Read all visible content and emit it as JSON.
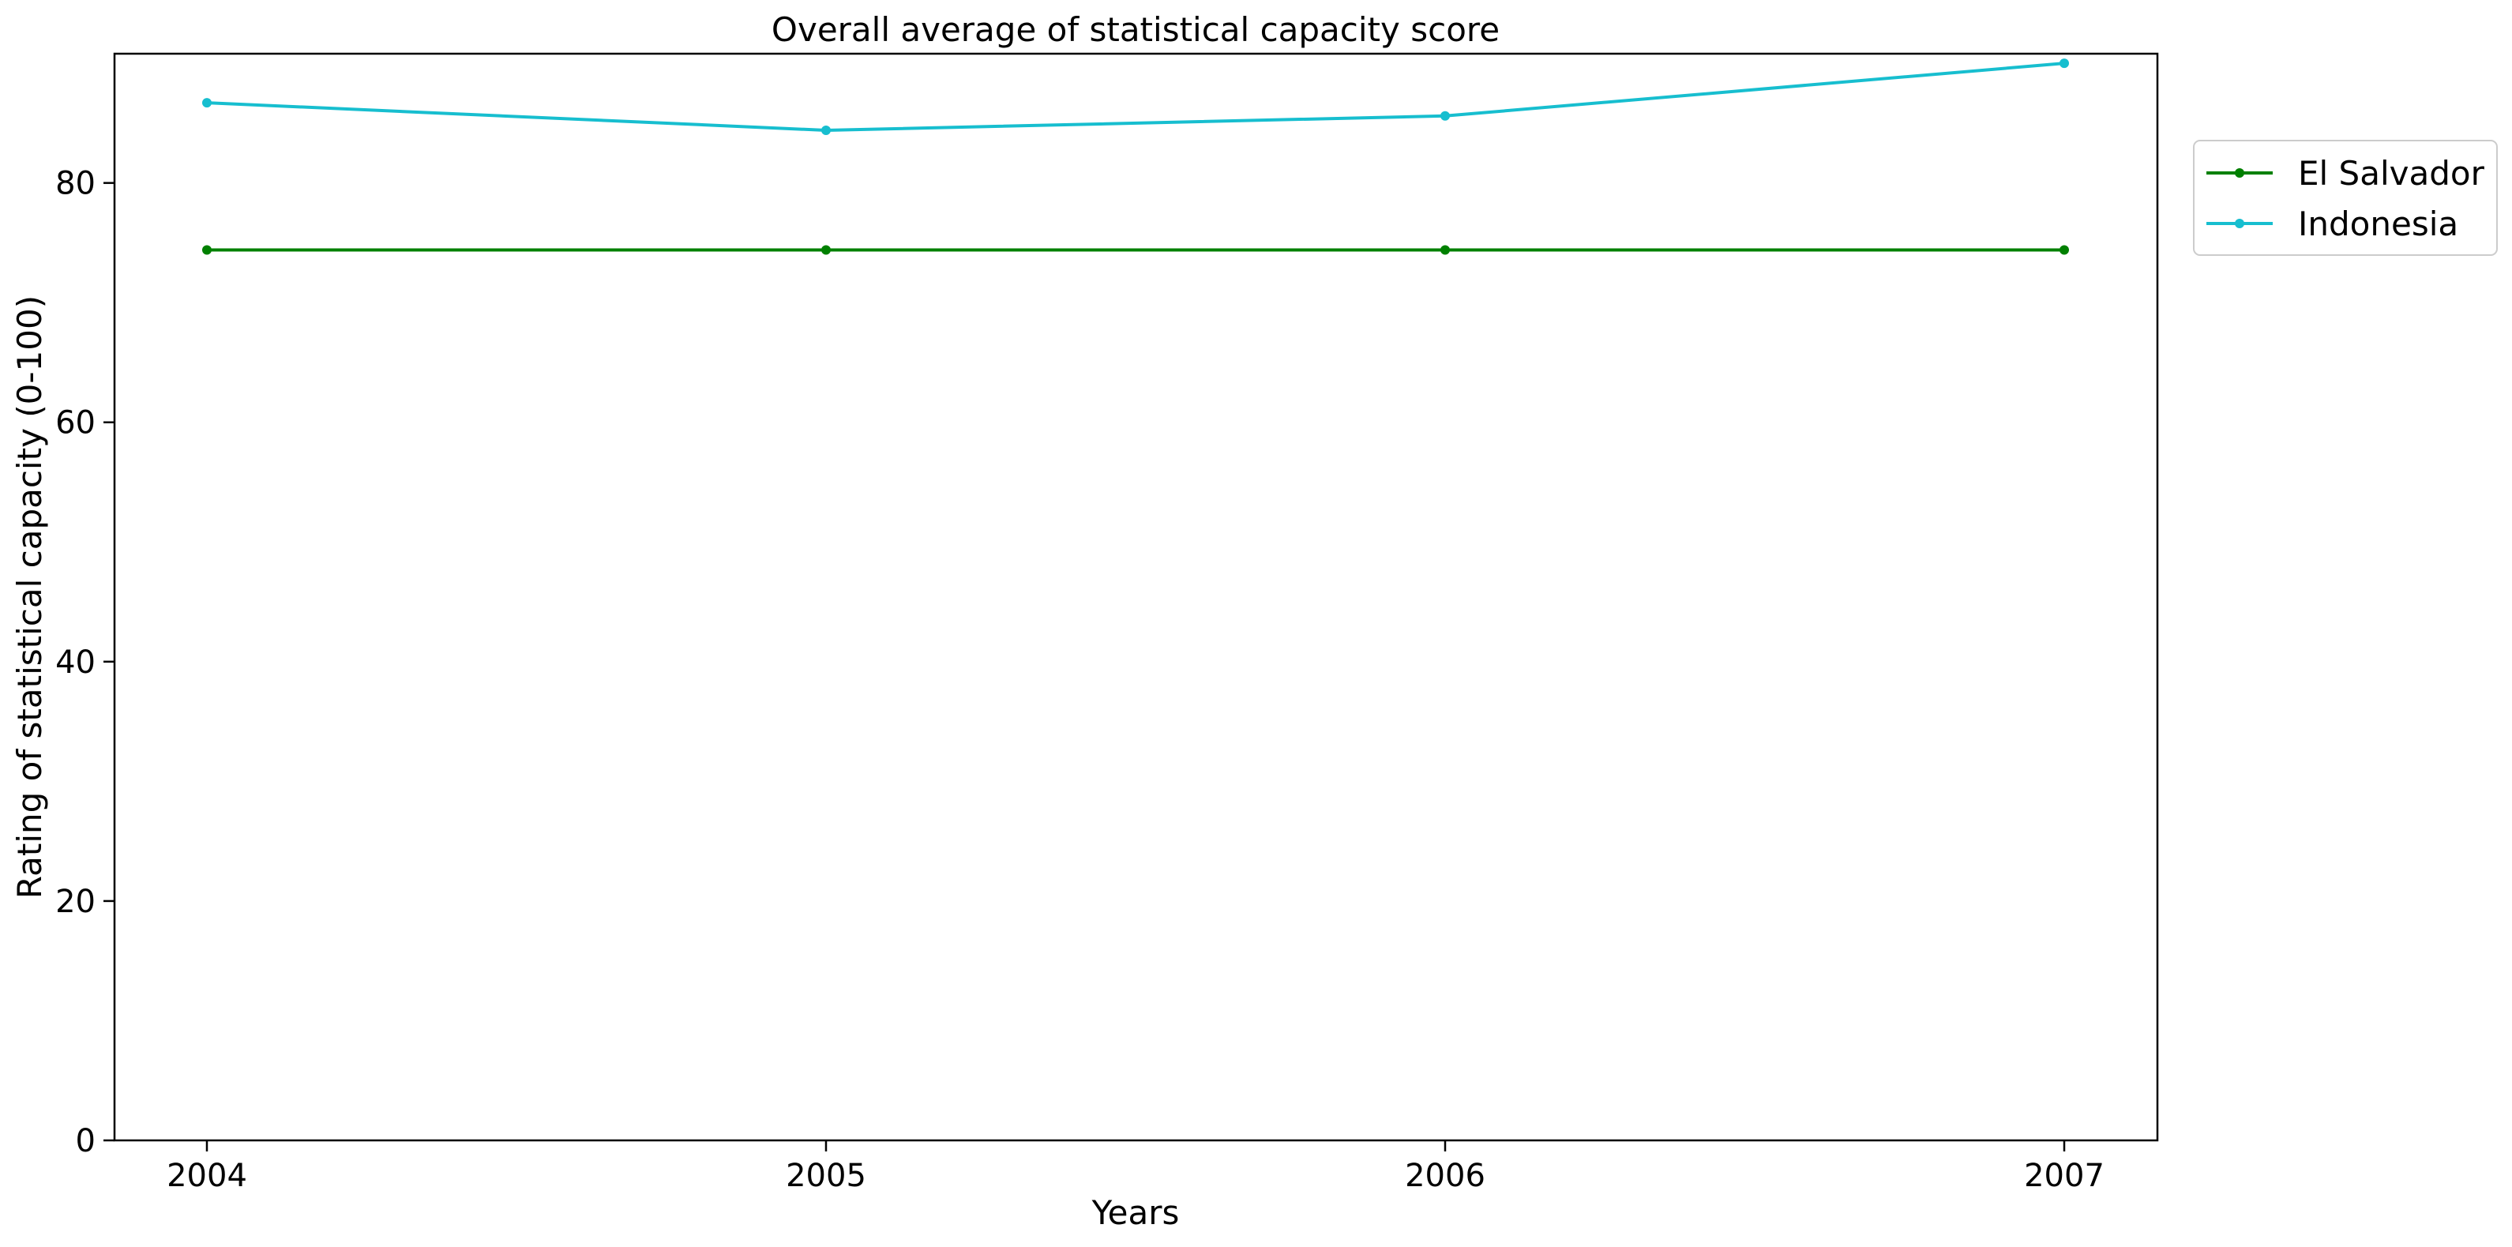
{
  "chart_data": {
    "type": "line",
    "title": "Overall average of statistical capacity score",
    "xlabel": "Years",
    "ylabel": "Rating of statistical capacity (0-100)",
    "categories": [
      "2004",
      "2005",
      "2006",
      "2007"
    ],
    "yticks": [
      "0",
      "20",
      "40",
      "60",
      "80"
    ],
    "ylim": [
      0,
      90.8
    ],
    "grid": false,
    "legend_position": "outside-right-top",
    "series": [
      {
        "name": "El Salvador",
        "color": "#008000",
        "values": [
          74.4,
          74.4,
          74.4,
          74.4
        ]
      },
      {
        "name": "Indonesia",
        "color": "#17becf",
        "values": [
          86.7,
          84.4,
          85.6,
          90.0
        ]
      }
    ]
  }
}
